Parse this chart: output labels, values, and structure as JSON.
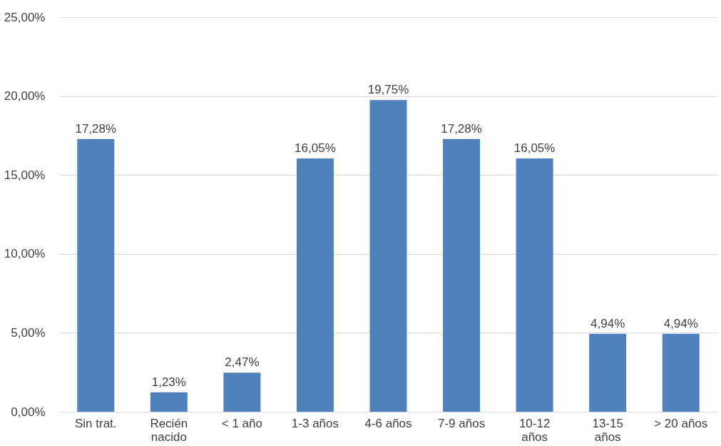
{
  "chart_data": {
    "type": "bar",
    "categories": [
      "Sin trat.",
      "Recién nacido",
      "< 1 año",
      "1-3 años",
      "4-6 años",
      "7-9 años",
      "10-12 años",
      "13-15 años",
      "> 20 años"
    ],
    "values": [
      17.28,
      1.23,
      2.47,
      16.05,
      19.75,
      17.28,
      16.05,
      4.94,
      4.94
    ],
    "value_labels": [
      "17,28%",
      "1,23%",
      "2,47%",
      "16,05%",
      "19,75%",
      "17,28%",
      "16,05%",
      "4,94%",
      "4,94%"
    ],
    "color": "#4f81bd",
    "ylim": [
      0,
      25
    ],
    "yticks": [
      {
        "value": 0,
        "label": "0,00%"
      },
      {
        "value": 5,
        "label": "5,00%"
      },
      {
        "value": 10,
        "label": "10,00%"
      },
      {
        "value": 15,
        "label": "15,00%"
      },
      {
        "value": 20,
        "label": "20,00%"
      },
      {
        "value": 25,
        "label": "25,00%"
      }
    ],
    "grid": "y"
  }
}
